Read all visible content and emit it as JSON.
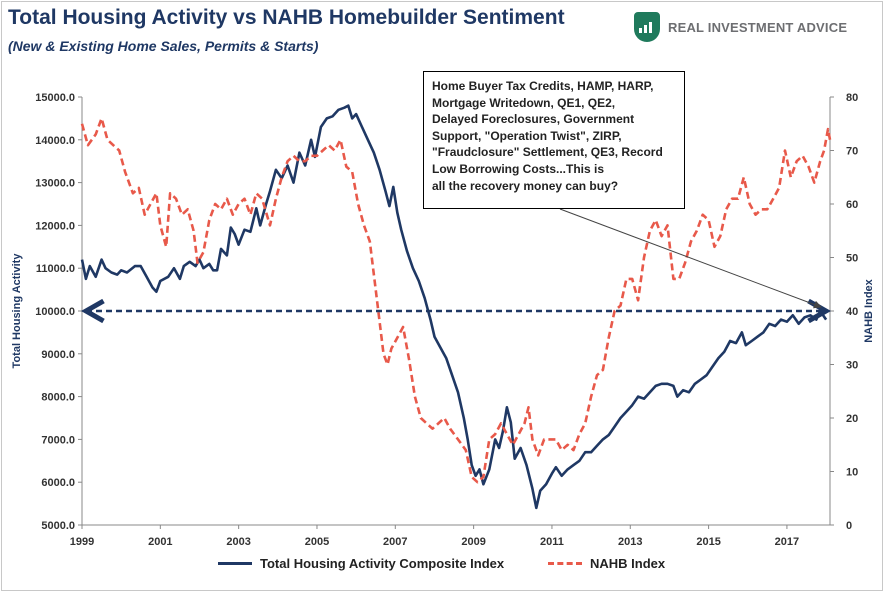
{
  "title": "Total Housing Activity vs NAHB Homebuilder Sentiment",
  "subtitle": "(New & Existing Home Sales, Permits & Starts)",
  "logo": {
    "text": "REAL INVESTMENT ADVICE",
    "icon": "chart-shield-icon"
  },
  "annotation": {
    "lines": [
      "Home Buyer Tax Credits, HAMP, HARP,",
      "Mortgage Writedown,  QE1, QE2,",
      "Delayed Foreclosures, Government",
      "Support, \"Operation Twist\", ZIRP,",
      "\"Fraudclosure\" Settlement, QE3, Record",
      "Low Borrowing Costs...This is",
      "all the recovery money can buy?"
    ]
  },
  "colors": {
    "housing": "#1f3864",
    "nahb": "#e8594a",
    "title": "#1f3864",
    "grid": "#d9d9d9"
  },
  "chart_data": {
    "type": "line",
    "xlim": [
      1999,
      2018.1
    ],
    "x_ticks": [
      "1999",
      "2001",
      "2003",
      "2005",
      "2007",
      "2009",
      "2011",
      "2013",
      "2015",
      "2017"
    ],
    "ylabel": "Total Housing Activity",
    "ylim": [
      5000,
      15000
    ],
    "y_ticks": [
      "5000.0",
      "6000.0",
      "7000.0",
      "8000.0",
      "9000.0",
      "10000.0",
      "11000.0",
      "12000.0",
      "13000.0",
      "14000.0",
      "15000.0"
    ],
    "y2label": "NAHB Index",
    "y2lim": [
      0,
      80
    ],
    "y2_ticks": [
      "0",
      "10",
      "20",
      "30",
      "40",
      "50",
      "60",
      "70",
      "80"
    ],
    "reference_line": {
      "y": 10000,
      "style": "dashed-arrow"
    },
    "legend_position": "bottom",
    "grid": false,
    "series": [
      {
        "name": "Total Housing Activity Composite Index",
        "axis": "left",
        "style": "solid",
        "points": [
          [
            1999.0,
            11200
          ],
          [
            1999.1,
            10750
          ],
          [
            1999.2,
            11050
          ],
          [
            1999.35,
            10800
          ],
          [
            1999.5,
            11200
          ],
          [
            1999.6,
            11000
          ],
          [
            1999.75,
            10900
          ],
          [
            1999.9,
            10850
          ],
          [
            2000.0,
            10950
          ],
          [
            2000.15,
            10900
          ],
          [
            2000.35,
            11050
          ],
          [
            2000.5,
            11050
          ],
          [
            2000.65,
            10800
          ],
          [
            2000.8,
            10550
          ],
          [
            2000.9,
            10450
          ],
          [
            2001.0,
            10700
          ],
          [
            2001.2,
            10800
          ],
          [
            2001.35,
            11000
          ],
          [
            2001.5,
            10750
          ],
          [
            2001.6,
            11050
          ],
          [
            2001.75,
            11150
          ],
          [
            2001.9,
            11050
          ],
          [
            2002.0,
            11200
          ],
          [
            2002.1,
            11000
          ],
          [
            2002.25,
            11100
          ],
          [
            2002.35,
            10950
          ],
          [
            2002.45,
            10950
          ],
          [
            2002.55,
            11450
          ],
          [
            2002.7,
            11300
          ],
          [
            2002.8,
            11950
          ],
          [
            2002.9,
            11800
          ],
          [
            2003.0,
            11550
          ],
          [
            2003.15,
            11900
          ],
          [
            2003.3,
            11850
          ],
          [
            2003.45,
            12400
          ],
          [
            2003.55,
            12000
          ],
          [
            2003.7,
            12500
          ],
          [
            2003.8,
            12800
          ],
          [
            2003.95,
            13300
          ],
          [
            2004.1,
            13100
          ],
          [
            2004.25,
            13400
          ],
          [
            2004.4,
            13000
          ],
          [
            2004.55,
            13700
          ],
          [
            2004.7,
            13400
          ],
          [
            2004.85,
            14000
          ],
          [
            2004.95,
            13600
          ],
          [
            2005.1,
            14300
          ],
          [
            2005.25,
            14500
          ],
          [
            2005.4,
            14550
          ],
          [
            2005.55,
            14700
          ],
          [
            2005.7,
            14750
          ],
          [
            2005.8,
            14800
          ],
          [
            2005.9,
            14500
          ],
          [
            2006.0,
            14600
          ],
          [
            2006.15,
            14300
          ],
          [
            2006.3,
            14000
          ],
          [
            2006.45,
            13700
          ],
          [
            2006.6,
            13300
          ],
          [
            2006.75,
            12800
          ],
          [
            2006.85,
            12450
          ],
          [
            2006.95,
            12900
          ],
          [
            2007.05,
            12300
          ],
          [
            2007.15,
            11900
          ],
          [
            2007.3,
            11400
          ],
          [
            2007.45,
            11000
          ],
          [
            2007.6,
            10700
          ],
          [
            2007.75,
            10300
          ],
          [
            2007.9,
            9800
          ],
          [
            2008.0,
            9400
          ],
          [
            2008.15,
            9150
          ],
          [
            2008.3,
            8900
          ],
          [
            2008.45,
            8500
          ],
          [
            2008.6,
            8100
          ],
          [
            2008.75,
            7500
          ],
          [
            2008.85,
            7000
          ],
          [
            2008.95,
            6400
          ],
          [
            2009.05,
            6150
          ],
          [
            2009.15,
            6300
          ],
          [
            2009.25,
            5950
          ],
          [
            2009.4,
            6300
          ],
          [
            2009.55,
            7000
          ],
          [
            2009.65,
            6800
          ],
          [
            2009.75,
            7200
          ],
          [
            2009.85,
            7750
          ],
          [
            2009.95,
            7400
          ],
          [
            2010.05,
            6550
          ],
          [
            2010.2,
            6800
          ],
          [
            2010.35,
            6400
          ],
          [
            2010.5,
            5850
          ],
          [
            2010.6,
            5400
          ],
          [
            2010.7,
            5800
          ],
          [
            2010.85,
            5950
          ],
          [
            2011.0,
            6200
          ],
          [
            2011.1,
            6350
          ],
          [
            2011.25,
            6150
          ],
          [
            2011.4,
            6300
          ],
          [
            2011.55,
            6400
          ],
          [
            2011.7,
            6500
          ],
          [
            2011.85,
            6700
          ],
          [
            2012.0,
            6700
          ],
          [
            2012.15,
            6850
          ],
          [
            2012.3,
            7000
          ],
          [
            2012.45,
            7100
          ],
          [
            2012.6,
            7300
          ],
          [
            2012.75,
            7500
          ],
          [
            2012.9,
            7650
          ],
          [
            2013.05,
            7800
          ],
          [
            2013.2,
            8000
          ],
          [
            2013.35,
            7950
          ],
          [
            2013.5,
            8100
          ],
          [
            2013.65,
            8250
          ],
          [
            2013.8,
            8300
          ],
          [
            2013.95,
            8300
          ],
          [
            2014.1,
            8250
          ],
          [
            2014.2,
            8000
          ],
          [
            2014.35,
            8150
          ],
          [
            2014.5,
            8100
          ],
          [
            2014.65,
            8300
          ],
          [
            2014.8,
            8400
          ],
          [
            2014.95,
            8500
          ],
          [
            2015.1,
            8700
          ],
          [
            2015.25,
            8900
          ],
          [
            2015.4,
            9050
          ],
          [
            2015.55,
            9300
          ],
          [
            2015.7,
            9250
          ],
          [
            2015.85,
            9500
          ],
          [
            2015.95,
            9200
          ],
          [
            2016.1,
            9300
          ],
          [
            2016.25,
            9400
          ],
          [
            2016.4,
            9500
          ],
          [
            2016.55,
            9700
          ],
          [
            2016.7,
            9650
          ],
          [
            2016.85,
            9800
          ],
          [
            2017.0,
            9750
          ],
          [
            2017.15,
            9900
          ],
          [
            2017.3,
            9700
          ],
          [
            2017.45,
            9850
          ],
          [
            2017.6,
            9900
          ],
          [
            2017.75,
            9800
          ],
          [
            2017.85,
            10000
          ],
          [
            2018.0,
            9800
          ]
        ]
      },
      {
        "name": "NAHB Index",
        "axis": "right",
        "style": "dashed",
        "points": [
          [
            1999.0,
            75
          ],
          [
            1999.15,
            71
          ],
          [
            1999.35,
            73
          ],
          [
            1999.5,
            76
          ],
          [
            1999.65,
            72
          ],
          [
            1999.8,
            71
          ],
          [
            1999.95,
            70
          ],
          [
            2000.1,
            66
          ],
          [
            2000.3,
            62
          ],
          [
            2000.45,
            63
          ],
          [
            2000.6,
            58
          ],
          [
            2000.75,
            60
          ],
          [
            2000.9,
            62
          ],
          [
            2001.0,
            56
          ],
          [
            2001.15,
            52
          ],
          [
            2001.25,
            62
          ],
          [
            2001.4,
            61
          ],
          [
            2001.55,
            58
          ],
          [
            2001.7,
            59
          ],
          [
            2001.85,
            55
          ],
          [
            2001.95,
            49
          ],
          [
            2002.1,
            51
          ],
          [
            2002.25,
            57
          ],
          [
            2002.4,
            60
          ],
          [
            2002.55,
            59
          ],
          [
            2002.7,
            61
          ],
          [
            2002.85,
            58
          ],
          [
            2003.0,
            60
          ],
          [
            2003.15,
            61
          ],
          [
            2003.3,
            58
          ],
          [
            2003.45,
            62
          ],
          [
            2003.6,
            61
          ],
          [
            2003.8,
            56
          ],
          [
            2003.95,
            61
          ],
          [
            2004.1,
            65
          ],
          [
            2004.25,
            68
          ],
          [
            2004.4,
            69
          ],
          [
            2004.55,
            68
          ],
          [
            2004.7,
            68
          ],
          [
            2004.85,
            69
          ],
          [
            2005.0,
            69
          ],
          [
            2005.15,
            70
          ],
          [
            2005.3,
            71
          ],
          [
            2005.45,
            70
          ],
          [
            2005.6,
            72
          ],
          [
            2005.75,
            67
          ],
          [
            2005.9,
            66
          ],
          [
            2006.05,
            60
          ],
          [
            2006.2,
            56
          ],
          [
            2006.35,
            53
          ],
          [
            2006.5,
            44
          ],
          [
            2006.6,
            38
          ],
          [
            2006.7,
            32
          ],
          [
            2006.8,
            30
          ],
          [
            2006.9,
            33
          ],
          [
            2007.05,
            35
          ],
          [
            2007.2,
            37
          ],
          [
            2007.35,
            31
          ],
          [
            2007.5,
            24
          ],
          [
            2007.65,
            20
          ],
          [
            2007.8,
            19
          ],
          [
            2007.95,
            18
          ],
          [
            2008.1,
            19
          ],
          [
            2008.25,
            20
          ],
          [
            2008.4,
            18
          ],
          [
            2008.6,
            16
          ],
          [
            2008.8,
            14
          ],
          [
            2008.95,
            9
          ],
          [
            2009.1,
            8
          ],
          [
            2009.25,
            9
          ],
          [
            2009.4,
            16
          ],
          [
            2009.55,
            17
          ],
          [
            2009.7,
            19
          ],
          [
            2009.85,
            17
          ],
          [
            2010.0,
            15
          ],
          [
            2010.15,
            17
          ],
          [
            2010.3,
            19
          ],
          [
            2010.4,
            22
          ],
          [
            2010.5,
            16
          ],
          [
            2010.65,
            13
          ],
          [
            2010.8,
            16
          ],
          [
            2010.95,
            16
          ],
          [
            2011.1,
            16
          ],
          [
            2011.25,
            14
          ],
          [
            2011.4,
            15
          ],
          [
            2011.55,
            14
          ],
          [
            2011.7,
            17
          ],
          [
            2011.85,
            19
          ],
          [
            2012.0,
            24
          ],
          [
            2012.15,
            28
          ],
          [
            2012.3,
            29
          ],
          [
            2012.45,
            35
          ],
          [
            2012.6,
            40
          ],
          [
            2012.75,
            41
          ],
          [
            2012.9,
            46
          ],
          [
            2013.05,
            46
          ],
          [
            2013.2,
            42
          ],
          [
            2013.35,
            50
          ],
          [
            2013.5,
            55
          ],
          [
            2013.65,
            57
          ],
          [
            2013.8,
            54
          ],
          [
            2013.95,
            56
          ],
          [
            2014.1,
            46
          ],
          [
            2014.25,
            46
          ],
          [
            2014.4,
            49
          ],
          [
            2014.55,
            53
          ],
          [
            2014.7,
            55
          ],
          [
            2014.85,
            58
          ],
          [
            2015.0,
            57
          ],
          [
            2015.15,
            52
          ],
          [
            2015.3,
            54
          ],
          [
            2015.45,
            59
          ],
          [
            2015.6,
            61
          ],
          [
            2015.75,
            61
          ],
          [
            2015.9,
            65
          ],
          [
            2016.05,
            60
          ],
          [
            2016.2,
            58
          ],
          [
            2016.35,
            59
          ],
          [
            2016.5,
            59
          ],
          [
            2016.65,
            61
          ],
          [
            2016.8,
            63
          ],
          [
            2016.95,
            70
          ],
          [
            2017.1,
            65
          ],
          [
            2017.25,
            68
          ],
          [
            2017.4,
            69
          ],
          [
            2017.55,
            67
          ],
          [
            2017.7,
            64
          ],
          [
            2017.85,
            68
          ],
          [
            2017.95,
            70
          ],
          [
            2018.05,
            74
          ],
          [
            2018.1,
            72
          ]
        ]
      }
    ]
  },
  "legend": {
    "housing": "Total Housing Activity Composite Index",
    "nahb": "NAHB Index"
  }
}
